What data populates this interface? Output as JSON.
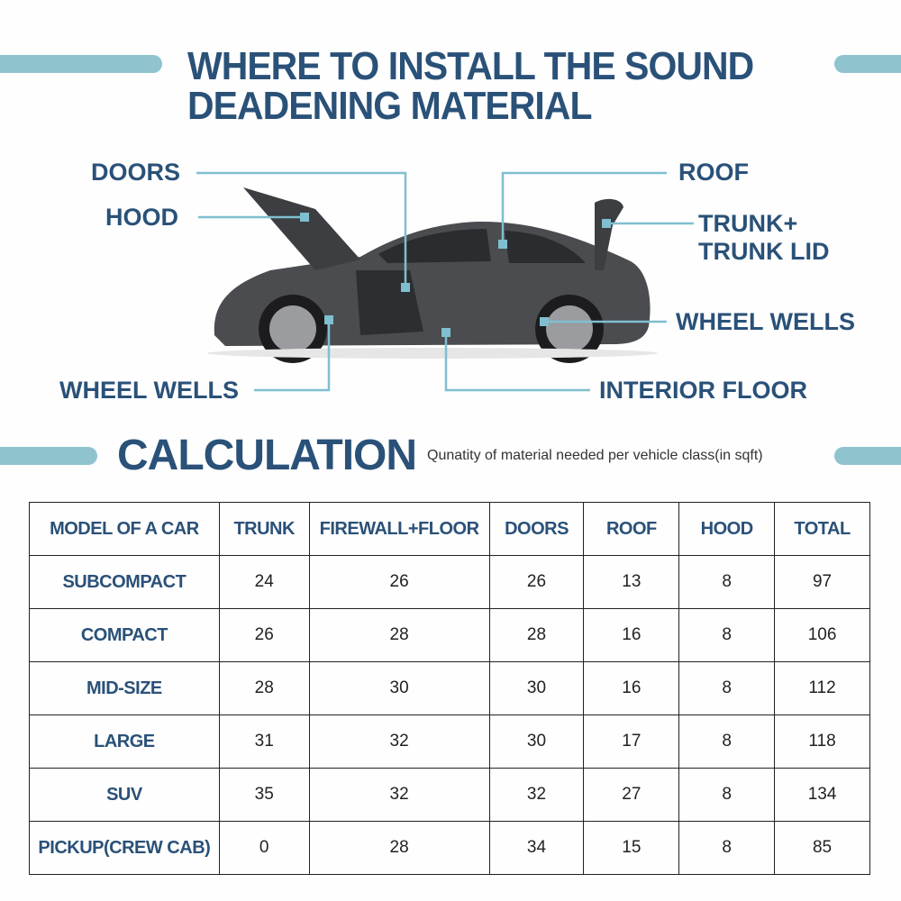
{
  "header": {
    "title_line1": "WHERE TO INSTALL THE SOUND",
    "title_line2": "DEADENING MATERIAL"
  },
  "callouts": {
    "doors": "DOORS",
    "hood": "HOOD",
    "roof": "ROOF",
    "trunk_line1": "TRUNK+",
    "trunk_line2": "TRUNK LID",
    "wheel_wells_right": "WHEEL WELLS",
    "wheel_wells_left": "WHEEL WELLS",
    "interior_floor": "INTERIOR FLOOR"
  },
  "calculation": {
    "title": "CALCULATION",
    "subtitle": "Qunatity of material needed per vehicle class(in sqft)"
  },
  "table": {
    "headers": [
      "MODEL OF A CAR",
      "TRUNK",
      "FIREWALL+FLOOR",
      "DOORS",
      "ROOF",
      "HOOD",
      "TOTAL"
    ],
    "rows": [
      [
        "SUBCOMPACT",
        "24",
        "26",
        "26",
        "13",
        "8",
        "97"
      ],
      [
        "COMPACT",
        "26",
        "28",
        "28",
        "16",
        "8",
        "106"
      ],
      [
        "MID-SIZE",
        "28",
        "30",
        "30",
        "16",
        "8",
        "112"
      ],
      [
        "LARGE",
        "31",
        "32",
        "30",
        "17",
        "8",
        "118"
      ],
      [
        "SUV",
        "35",
        "32",
        "32",
        "27",
        "8",
        "134"
      ],
      [
        "PICKUP(CREW CAB)",
        "0",
        "28",
        "34",
        "15",
        "8",
        "85"
      ]
    ]
  },
  "colors": {
    "navy": "#2a5178",
    "accent_bar": "#8fc4cf",
    "callout_line": "#7fbfcf"
  }
}
